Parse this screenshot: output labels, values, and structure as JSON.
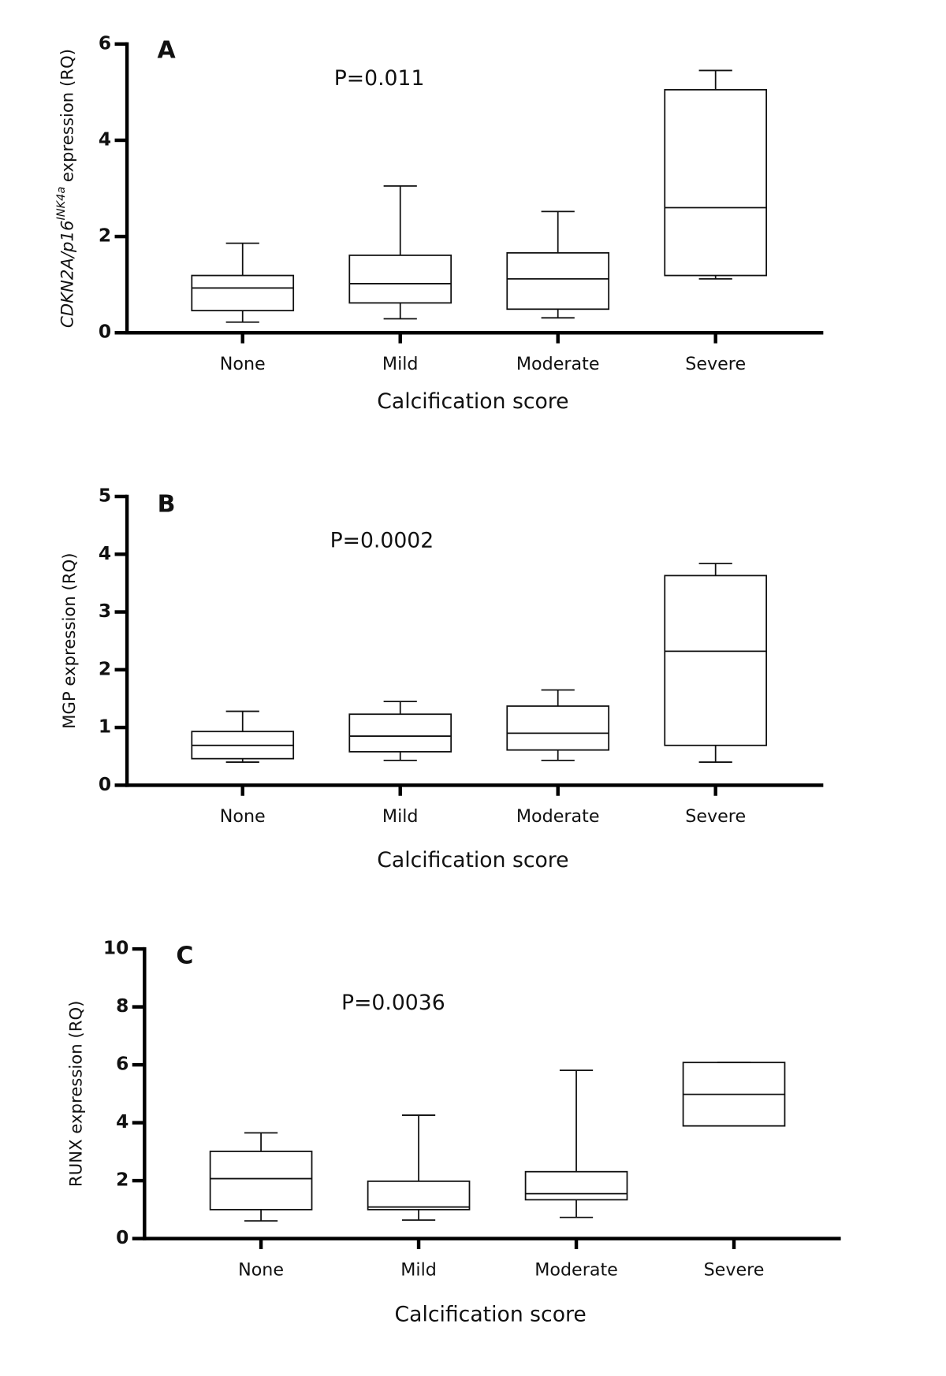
{
  "chart_data": [
    {
      "type": "box",
      "panel_label": "A",
      "annotation": "P=0.011",
      "ylabel": [
        "CDKN2A/p16",
        "INK4a",
        "expression (RQ)"
      ],
      "xlabel": "Calcification score",
      "categories": [
        "None",
        "Mild",
        "Moderate",
        "Severe"
      ],
      "min": [
        0.22,
        0.29,
        0.31,
        1.12
      ],
      "q1": [
        0.46,
        0.62,
        0.49,
        1.19
      ],
      "median": [
        0.93,
        1.02,
        1.12,
        2.6
      ],
      "q3": [
        1.19,
        1.61,
        1.66,
        5.05
      ],
      "max": [
        1.86,
        3.05,
        2.52,
        5.45
      ],
      "ylim": [
        0,
        6
      ],
      "yticks": [
        0,
        2,
        4,
        6
      ]
    },
    {
      "type": "box",
      "panel_label": "B",
      "annotation": "P=0.0002",
      "ylabel": "MGP expression (RQ)",
      "xlabel": "Calcification score",
      "categories": [
        "None",
        "Mild",
        "Moderate",
        "Severe"
      ],
      "min": [
        0.4,
        0.43,
        0.43,
        0.4
      ],
      "q1": [
        0.46,
        0.58,
        0.61,
        0.69
      ],
      "median": [
        0.69,
        0.85,
        0.9,
        2.32
      ],
      "q3": [
        0.93,
        1.23,
        1.37,
        3.63
      ],
      "max": [
        1.28,
        1.45,
        1.65,
        3.84
      ],
      "ylim": [
        0,
        5
      ],
      "yticks": [
        0,
        1,
        2,
        3,
        4,
        5
      ]
    },
    {
      "type": "box",
      "panel_label": "C",
      "annotation": "P=0.0036",
      "ylabel": "RUNX expression (RQ)",
      "xlabel": "Calcification score",
      "categories": [
        "None",
        "Mild",
        "Moderate",
        "Severe"
      ],
      "min": [
        0.61,
        0.64,
        0.73,
        3.89
      ],
      "q1": [
        1.0,
        1.0,
        1.34,
        3.89
      ],
      "median": [
        2.07,
        1.09,
        1.55,
        4.98
      ],
      "q3": [
        3.01,
        1.98,
        2.31,
        6.08
      ],
      "max": [
        3.65,
        4.26,
        5.81,
        6.08
      ],
      "ylim": [
        0,
        10
      ],
      "yticks": [
        0,
        2,
        4,
        6,
        8,
        10
      ]
    }
  ]
}
